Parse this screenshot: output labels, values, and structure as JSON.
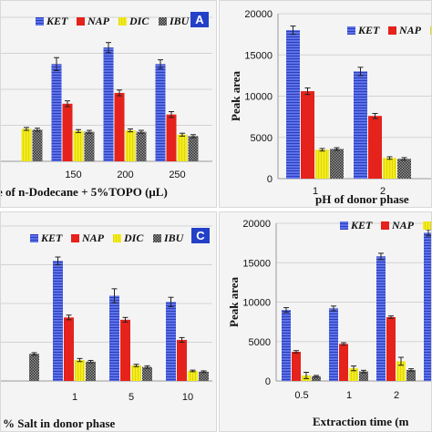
{
  "colors": {
    "KET": "#3f51d6",
    "NAP": "#e5221b",
    "DIC": "#f2ea18",
    "IBU": "#3a3a3a",
    "panel_letter_bg": "#2340c8"
  },
  "chart_data": [
    {
      "panel": "A",
      "type": "bar",
      "xlabel": "e of n-Dodecane + 5%TOPO (μL)",
      "ylabel": "",
      "categories": [
        "",
        "150",
        "200",
        "250"
      ],
      "series": [
        {
          "name": "KET",
          "values": [
            null,
            13500,
            15800,
            13500
          ]
        },
        {
          "name": "NAP",
          "values": [
            null,
            8000,
            9500,
            6500
          ]
        },
        {
          "name": "DIC",
          "values": [
            4500,
            4200,
            4300,
            3700
          ]
        },
        {
          "name": "IBU",
          "values": [
            4400,
            4100,
            4100,
            3500
          ]
        }
      ],
      "errors": [
        [
          0,
          900,
          700,
          600
        ],
        [
          0,
          400,
          400,
          400
        ],
        [
          200,
          200,
          200,
          200
        ],
        [
          200,
          200,
          200,
          200
        ]
      ],
      "ylim": [
        0,
        20000
      ],
      "show_y_ticks": false
    },
    {
      "panel": "B",
      "type": "bar",
      "xlabel": "pH of donor phase",
      "ylabel": "Peak area",
      "categories": [
        "1",
        "2"
      ],
      "series": [
        {
          "name": "KET",
          "values": [
            18000,
            13000
          ]
        },
        {
          "name": "NAP",
          "values": [
            10600,
            7600
          ]
        },
        {
          "name": "DIC",
          "values": [
            3500,
            2500
          ]
        },
        {
          "name": "IBU",
          "values": [
            3600,
            2400
          ]
        }
      ],
      "errors": [
        [
          500,
          500
        ],
        [
          400,
          300
        ],
        [
          150,
          150
        ],
        [
          150,
          150
        ]
      ],
      "ylim": [
        0,
        20000
      ],
      "yticks": [
        0,
        5000,
        10000,
        15000,
        20000
      ],
      "show_y_ticks": true
    },
    {
      "panel": "C",
      "type": "bar",
      "xlabel": "% Salt in donor phase",
      "ylabel": "",
      "categories": [
        "",
        "1",
        "5",
        "10"
      ],
      "series": [
        {
          "name": "KET",
          "values": [
            null,
            15500,
            11000,
            10200
          ]
        },
        {
          "name": "NAP",
          "values": [
            null,
            8200,
            7900,
            5300
          ]
        },
        {
          "name": "DIC",
          "values": [
            null,
            2700,
            2000,
            1300
          ]
        },
        {
          "name": "IBU",
          "values": [
            3500,
            2500,
            1800,
            1200
          ]
        }
      ],
      "errors": [
        [
          0,
          500,
          900,
          600
        ],
        [
          0,
          300,
          300,
          300
        ],
        [
          0,
          200,
          150,
          100
        ],
        [
          150,
          150,
          150,
          100
        ]
      ],
      "ylim": [
        0,
        20000
      ],
      "show_y_ticks": false
    },
    {
      "panel": "D",
      "type": "bar",
      "xlabel": "Extraction time (m",
      "ylabel": "Peak area",
      "categories": [
        "0.5",
        "1",
        "2",
        ""
      ],
      "series": [
        {
          "name": "KET",
          "values": [
            9000,
            9200,
            15800,
            18800
          ]
        },
        {
          "name": "NAP",
          "values": [
            3700,
            4700,
            8100,
            null
          ]
        },
        {
          "name": "DIC",
          "values": [
            700,
            1600,
            2500,
            null
          ]
        },
        {
          "name": "IBU",
          "values": [
            600,
            1200,
            1400,
            null
          ]
        }
      ],
      "errors": [
        [
          300,
          300,
          400,
          400
        ],
        [
          150,
          150,
          150,
          0
        ],
        [
          400,
          300,
          500,
          0
        ],
        [
          100,
          150,
          150,
          0
        ]
      ],
      "ylim": [
        0,
        20000
      ],
      "yticks": [
        0,
        5000,
        10000,
        15000,
        20000
      ],
      "show_y_ticks": true
    }
  ]
}
